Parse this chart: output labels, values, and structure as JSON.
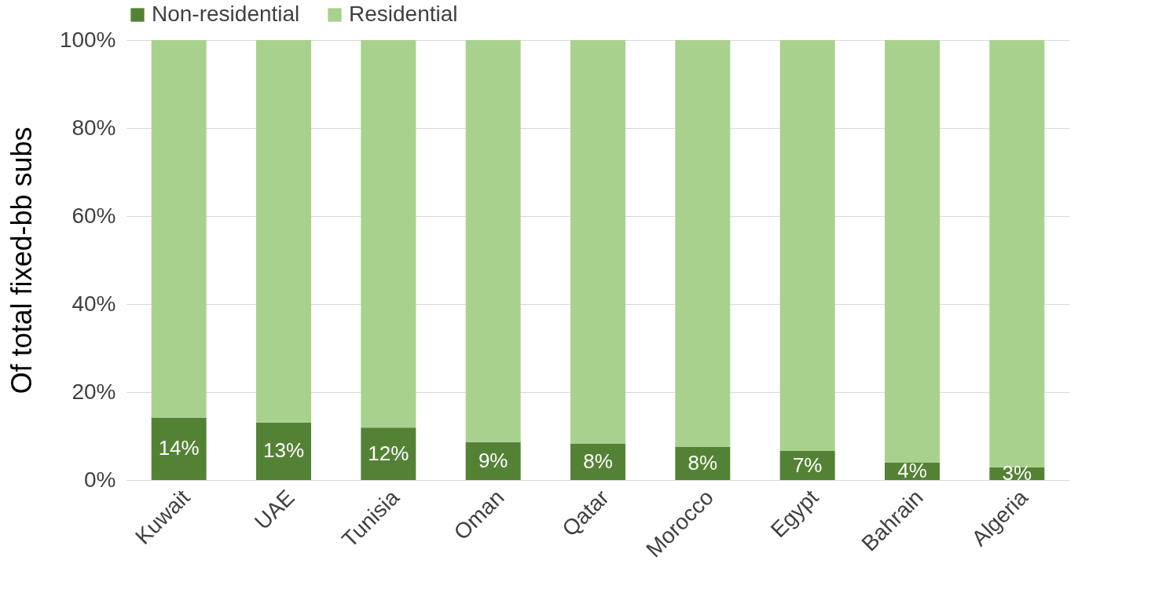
{
  "chart_data": {
    "type": "bar",
    "stacked": true,
    "ylabel": "Of total fixed-bb subs",
    "categories": [
      "Kuwait",
      "UAE",
      "Tunisia",
      "Oman",
      "Qatar",
      "Morocco",
      "Egypt",
      "Bahrain",
      "Algeria"
    ],
    "series": [
      {
        "name": "Non-residential",
        "color": "#548235",
        "values": [
          14.2,
          13.1,
          11.9,
          8.6,
          8.3,
          7.5,
          6.6,
          4.0,
          2.9
        ],
        "value_labels": [
          "14%",
          "13%",
          "12%",
          "9%",
          "8%",
          "8%",
          "7%",
          "4%",
          "3%"
        ]
      },
      {
        "name": "Residential",
        "color": "#a9d18e",
        "values": [
          85.8,
          86.9,
          88.1,
          91.4,
          91.7,
          92.5,
          93.4,
          96.0,
          97.1
        ]
      }
    ],
    "ylim": [
      0,
      100
    ],
    "yticks": [
      {
        "value": 0,
        "label": "0%"
      },
      {
        "value": 20,
        "label": "20%"
      },
      {
        "value": 40,
        "label": "40%"
      },
      {
        "value": 60,
        "label": "60%"
      },
      {
        "value": 80,
        "label": "80%"
      },
      {
        "value": 100,
        "label": "100%"
      }
    ],
    "grid": "y",
    "legend": "top"
  }
}
